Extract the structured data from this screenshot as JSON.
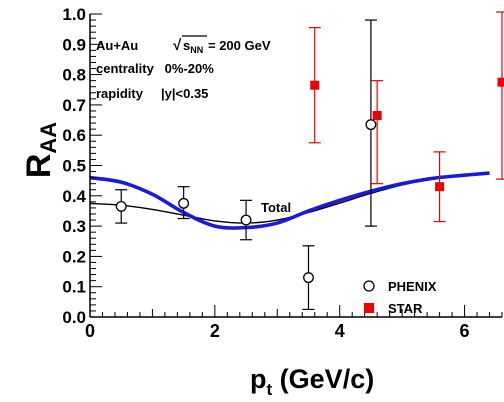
{
  "chart_data": {
    "type": "scatter",
    "title": "",
    "xlabel_main": "p",
    "xlabel_sub": "t",
    "xlabel_unit": " (GeV/c)",
    "ylabel_main": "R",
    "ylabel_sub": "AA",
    "xlim": [
      0,
      6.6
    ],
    "ylim": [
      0,
      1.0
    ],
    "x_ticks": [
      0,
      2,
      4,
      6
    ],
    "x_tick_labels": [
      "0",
      "2",
      "4",
      "6"
    ],
    "y_ticks": [
      0,
      0.1,
      0.2,
      0.3,
      0.4,
      0.5,
      0.6,
      0.7,
      0.8,
      0.9,
      1.0
    ],
    "y_tick_labels": [
      "0.0",
      "0.1",
      "0.2",
      "0.3",
      "0.4",
      "0.5",
      "0.6",
      "0.7",
      "0.8",
      "0.9",
      "1.0"
    ],
    "grid": false,
    "legend_position": "bottom-right",
    "annotations": {
      "system": "Au+Au",
      "sqrt": "√",
      "s": "s",
      "s_sub": "NN",
      "energy": " = 200 GeV",
      "centrality": "centrality   0%-20%",
      "rapidity": "rapidity     |y|<0.35",
      "curve_label": "Total"
    },
    "series": [
      {
        "name": "PHENIX",
        "marker": "open-circle",
        "color": "#000000",
        "points": [
          {
            "x": 0.5,
            "y": 0.365,
            "err_lo": 0.055,
            "err_hi": 0.055
          },
          {
            "x": 1.5,
            "y": 0.375,
            "err_lo": 0.05,
            "err_hi": 0.055
          },
          {
            "x": 2.5,
            "y": 0.32,
            "err_lo": 0.065,
            "err_hi": 0.065
          },
          {
            "x": 3.5,
            "y": 0.13,
            "err_lo": 0.105,
            "err_hi": 0.105
          },
          {
            "x": 4.5,
            "y": 0.635,
            "err_lo": 0.335,
            "err_hi": 0.345
          }
        ]
      },
      {
        "name": "STAR",
        "marker": "filled-square",
        "color": "#ee0000",
        "points": [
          {
            "x": 3.6,
            "y": 0.765,
            "err_lo": 0.19,
            "err_hi": 0.19
          },
          {
            "x": 4.6,
            "y": 0.665,
            "err_lo": 0.225,
            "err_hi": 0.115
          },
          {
            "x": 5.6,
            "y": 0.43,
            "err_lo": 0.115,
            "err_hi": 0.115
          },
          {
            "x": 6.6,
            "y": 0.775,
            "err_lo": 0.32,
            "err_hi": 0.25
          }
        ]
      }
    ],
    "curves": [
      {
        "name": "Total",
        "color": "#000000",
        "points": [
          [
            0,
            0.375
          ],
          [
            0.5,
            0.369
          ],
          [
            1.0,
            0.355
          ],
          [
            1.5,
            0.336
          ],
          [
            2.0,
            0.317
          ],
          [
            2.5,
            0.31
          ],
          [
            3.0,
            0.32
          ],
          [
            3.5,
            0.345
          ],
          [
            4.0,
            0.376
          ],
          [
            4.5,
            0.408
          ],
          [
            5.0,
            0.436
          ],
          [
            5.5,
            0.455
          ],
          [
            6.0,
            0.468
          ],
          [
            6.4,
            0.476
          ]
        ]
      },
      {
        "name": "",
        "color": "#1a1adb",
        "points": [
          [
            0,
            0.46
          ],
          [
            0.5,
            0.445
          ],
          [
            1.0,
            0.405
          ],
          [
            1.5,
            0.345
          ],
          [
            2.0,
            0.3
          ],
          [
            2.5,
            0.295
          ],
          [
            3.0,
            0.31
          ],
          [
            3.5,
            0.35
          ],
          [
            4.0,
            0.385
          ],
          [
            4.5,
            0.415
          ],
          [
            5.0,
            0.44
          ],
          [
            5.5,
            0.458
          ],
          [
            6.0,
            0.468
          ],
          [
            6.4,
            0.475
          ]
        ]
      }
    ]
  }
}
